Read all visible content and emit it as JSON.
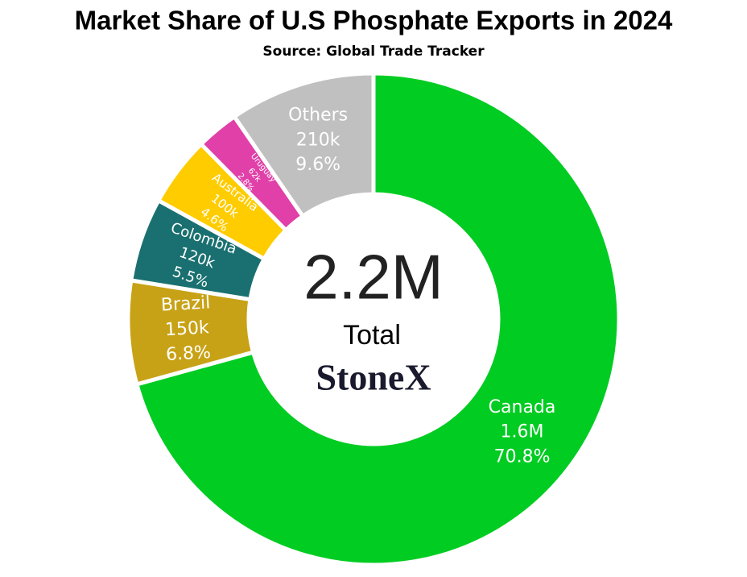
{
  "chart_data": {
    "type": "donut",
    "title": "Market Share of U.S Phosphate Exports in 2024",
    "subtitle": "Source: Global Trade Tracker",
    "categories": [
      "Canada",
      "Brazil",
      "Colombia",
      "Australia",
      "Uruguay",
      "Others"
    ],
    "values": [
      70.8,
      6.8,
      5.5,
      4.6,
      2.8,
      9.6
    ],
    "value_labels": [
      "70.8%",
      "6.8%",
      "5.5%",
      "4.6%",
      "2.8%",
      "9.6%"
    ],
    "amounts": [
      1600000,
      150000,
      120000,
      100000,
      62000,
      210000
    ],
    "amount_labels": [
      "1.6M",
      "150k",
      "120k",
      "100k",
      "62k",
      "210k"
    ],
    "colors": [
      "#00cc22",
      "#c8a216",
      "#1a7070",
      "#ffcc00",
      "#e040a8",
      "#c0c0c0"
    ],
    "total": {
      "value": 2200000,
      "label": "2.2M"
    },
    "total_label": "Total",
    "logo": "StoneX"
  }
}
